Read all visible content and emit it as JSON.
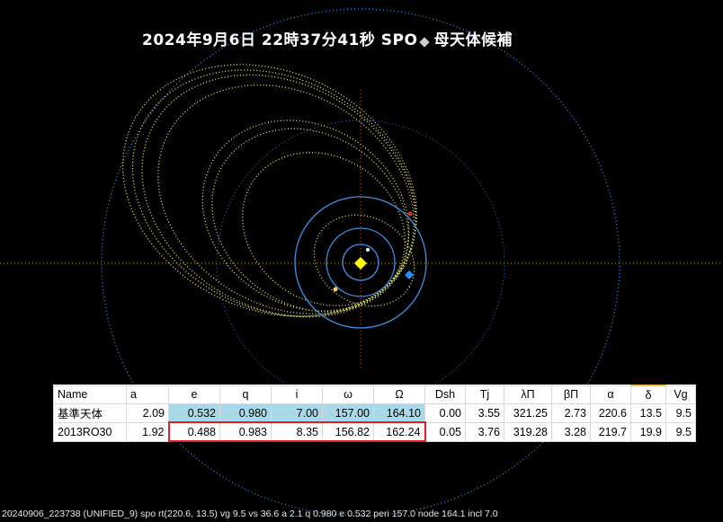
{
  "title": {
    "datetime": "2024年9月6日 22時37分41秒",
    "source": "SPO",
    "label": "母天体候補"
  },
  "table": {
    "headers": [
      "Name",
      "a",
      "e",
      "q",
      "i",
      "ω",
      "Ω",
      "Dsh",
      "Tj",
      "λΠ",
      "βΠ",
      "α",
      "δ",
      "Vg"
    ],
    "rows": [
      {
        "name": "基準天体",
        "a": "2.09",
        "e": "0.532",
        "q": "0.980",
        "i": "7.00",
        "omega": "157.00",
        "node": "164.10",
        "dsh": "0.00",
        "tj": "3.55",
        "lam": "321.25",
        "beta": "2.73",
        "alpha": "220.6",
        "delta": "13.5",
        "vg": "9.5"
      },
      {
        "name": "2013RO30",
        "a": "1.92",
        "e": "0.488",
        "q": "0.983",
        "i": "8.35",
        "omega": "156.82",
        "node": "162.24",
        "dsh": "0.05",
        "tj": "3.76",
        "lam": "319.28",
        "beta": "3.28",
        "alpha": "219.7",
        "delta": "19.9",
        "vg": "9.5"
      }
    ]
  },
  "footer": "20240906_223738 (UNIFIED_9) spo rt(220.6, 13.5) vg 9.5 vs 36.6 a 2.1 q 0.980 e 0.532 peri 157.0 node 164.1 incl 7.0",
  "colors": {
    "background": "#000000",
    "planet_orbit": "#3f8fe6",
    "meteoroid_orbit": "#e8e870",
    "sun": "#ffff00",
    "earth": "#1e90ff",
    "highlight_blue": "#a9d8e8",
    "highlight_red": "#e02020"
  },
  "icons": {
    "title_marker": "diamond-icon",
    "sun": "sun-icon",
    "earth": "earth-icon"
  }
}
